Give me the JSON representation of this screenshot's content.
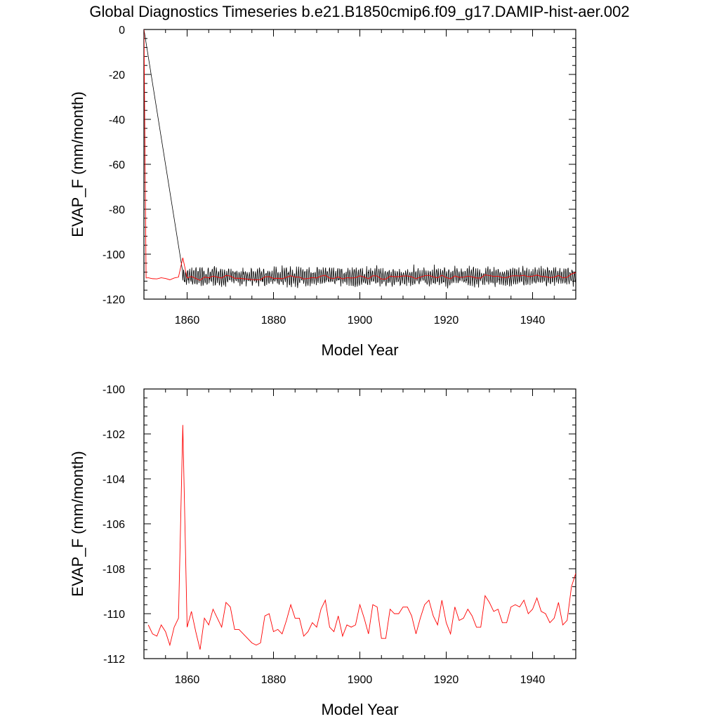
{
  "title": "Global Diagnostics Timeseries b.e21.B1850cmip6.f09_g17.DAMIP-hist-aer.002",
  "colors": {
    "monthly": "#000000",
    "annual": "#ff0000",
    "frame": "#000000"
  },
  "chart_data": [
    {
      "type": "line",
      "xlabel": "Model Year",
      "ylabel": "EVAP_F (mm/month)",
      "xlim": [
        1850,
        1950
      ],
      "ylim": [
        -120,
        0
      ],
      "xticks": [
        1860,
        1880,
        1900,
        1920,
        1940
      ],
      "yticks": [
        0,
        -20,
        -40,
        -60,
        -80,
        -100,
        -120
      ],
      "series": [
        {
          "key": "monthly",
          "color": "#000000",
          "description_of_values": "monthly values: start at 0 in 1850, fall to about -110 by 1859, then oscillate between about -115 and -105",
          "x": [
            1850,
            1850.08,
            1859,
            1950
          ],
          "y": [
            0,
            0,
            -110,
            -110
          ],
          "noise_amplitude": 4
        },
        {
          "key": "annual",
          "color": "#ff0000",
          "x": [
            1850,
            1850.5,
            1851,
            1852,
            1853,
            1854,
            1855,
            1856,
            1857,
            1858,
            1859,
            1860,
            1861,
            1862,
            1863,
            1864,
            1865,
            1866,
            1867,
            1868,
            1869,
            1870,
            1871,
            1872,
            1873,
            1874,
            1875,
            1876,
            1877,
            1878,
            1879,
            1880,
            1881,
            1882,
            1883,
            1884,
            1885,
            1886,
            1887,
            1888,
            1889,
            1890,
            1891,
            1892,
            1893,
            1894,
            1895,
            1896,
            1897,
            1898,
            1899,
            1900,
            1901,
            1902,
            1903,
            1904,
            1905,
            1906,
            1907,
            1908,
            1909,
            1910,
            1911,
            1912,
            1913,
            1914,
            1915,
            1916,
            1917,
            1918,
            1919,
            1920,
            1921,
            1922,
            1923,
            1924,
            1925,
            1926,
            1927,
            1928,
            1929,
            1930,
            1931,
            1932,
            1933,
            1934,
            1935,
            1936,
            1937,
            1938,
            1939,
            1940,
            1941,
            1942,
            1943,
            1944,
            1945,
            1946,
            1947,
            1948,
            1949,
            1950
          ],
          "y": [
            0,
            -110.6,
            -110.5,
            -110.9,
            -111.0,
            -110.5,
            -110.8,
            -111.4,
            -110.6,
            -110.2,
            -101.6,
            -110.6,
            -109.9,
            -110.8,
            -111.6,
            -110.2,
            -110.5,
            -109.8,
            -110.2,
            -110.6,
            -109.5,
            -109.7,
            -110.7,
            -110.7,
            -110.9,
            -111.1,
            -111.3,
            -111.4,
            -111.3,
            -110.1,
            -110.0,
            -110.8,
            -110.7,
            -110.9,
            -110.3,
            -109.6,
            -110.2,
            -110.2,
            -111.0,
            -110.8,
            -110.4,
            -110.6,
            -109.8,
            -109.4,
            -110.6,
            -110.8,
            -110.1,
            -111.0,
            -110.5,
            -110.6,
            -110.5,
            -109.6,
            -110.2,
            -110.9,
            -109.6,
            -109.7,
            -111.1,
            -111.1,
            -109.8,
            -110.0,
            -110.0,
            -109.7,
            -109.7,
            -110.1,
            -110.9,
            -110.2,
            -109.6,
            -109.4,
            -110.1,
            -110.5,
            -109.4,
            -110.4,
            -110.9,
            -109.7,
            -110.3,
            -110.2,
            -109.8,
            -110.1,
            -110.6,
            -110.6,
            -109.2,
            -109.5,
            -109.9,
            -109.8,
            -110.4,
            -110.4,
            -109.7,
            -109.6,
            -109.7,
            -109.4,
            -110.0,
            -109.8,
            -109.3,
            -109.9,
            -110.0,
            -110.4,
            -110.2,
            -109.5,
            -110.5,
            -110.3,
            -108.8,
            -108.2
          ]
        }
      ]
    },
    {
      "type": "line",
      "xlabel": "Model Year",
      "ylabel": "EVAP_F (mm/month)",
      "xlim": [
        1850,
        1950
      ],
      "ylim": [
        -112,
        -100
      ],
      "xticks": [
        1860,
        1880,
        1900,
        1920,
        1940
      ],
      "yticks": [
        -100,
        -102,
        -104,
        -106,
        -108,
        -110,
        -112
      ],
      "series": [
        {
          "key": "annual",
          "color": "#ff0000",
          "x": [
            1851,
            1852,
            1853,
            1854,
            1855,
            1856,
            1857,
            1858,
            1859,
            1860,
            1861,
            1862,
            1863,
            1864,
            1865,
            1866,
            1867,
            1868,
            1869,
            1870,
            1871,
            1872,
            1873,
            1874,
            1875,
            1876,
            1877,
            1878,
            1879,
            1880,
            1881,
            1882,
            1883,
            1884,
            1885,
            1886,
            1887,
            1888,
            1889,
            1890,
            1891,
            1892,
            1893,
            1894,
            1895,
            1896,
            1897,
            1898,
            1899,
            1900,
            1901,
            1902,
            1903,
            1904,
            1905,
            1906,
            1907,
            1908,
            1909,
            1910,
            1911,
            1912,
            1913,
            1914,
            1915,
            1916,
            1917,
            1918,
            1919,
            1920,
            1921,
            1922,
            1923,
            1924,
            1925,
            1926,
            1927,
            1928,
            1929,
            1930,
            1931,
            1932,
            1933,
            1934,
            1935,
            1936,
            1937,
            1938,
            1939,
            1940,
            1941,
            1942,
            1943,
            1944,
            1945,
            1946,
            1947,
            1948,
            1949,
            1950
          ],
          "y": [
            -110.5,
            -110.9,
            -111.0,
            -110.5,
            -110.8,
            -111.4,
            -110.6,
            -110.2,
            -101.6,
            -110.6,
            -109.9,
            -110.8,
            -111.6,
            -110.2,
            -110.5,
            -109.8,
            -110.2,
            -110.6,
            -109.5,
            -109.7,
            -110.7,
            -110.7,
            -110.9,
            -111.1,
            -111.3,
            -111.4,
            -111.3,
            -110.1,
            -110.0,
            -110.8,
            -110.7,
            -110.9,
            -110.3,
            -109.6,
            -110.2,
            -110.2,
            -111.0,
            -110.8,
            -110.4,
            -110.6,
            -109.8,
            -109.4,
            -110.6,
            -110.8,
            -110.1,
            -111.0,
            -110.5,
            -110.6,
            -110.5,
            -109.6,
            -110.2,
            -110.9,
            -109.6,
            -109.7,
            -111.1,
            -111.1,
            -109.8,
            -110.0,
            -110.0,
            -109.7,
            -109.7,
            -110.1,
            -110.9,
            -110.2,
            -109.6,
            -109.4,
            -110.1,
            -110.5,
            -109.4,
            -110.4,
            -110.9,
            -109.7,
            -110.3,
            -110.2,
            -109.8,
            -110.1,
            -110.6,
            -110.6,
            -109.2,
            -109.5,
            -109.9,
            -109.8,
            -110.4,
            -110.4,
            -109.7,
            -109.6,
            -109.7,
            -109.4,
            -110.0,
            -109.8,
            -109.3,
            -109.9,
            -110.0,
            -110.4,
            -110.2,
            -109.5,
            -110.5,
            -110.3,
            -108.8,
            -108.2
          ]
        }
      ]
    }
  ]
}
